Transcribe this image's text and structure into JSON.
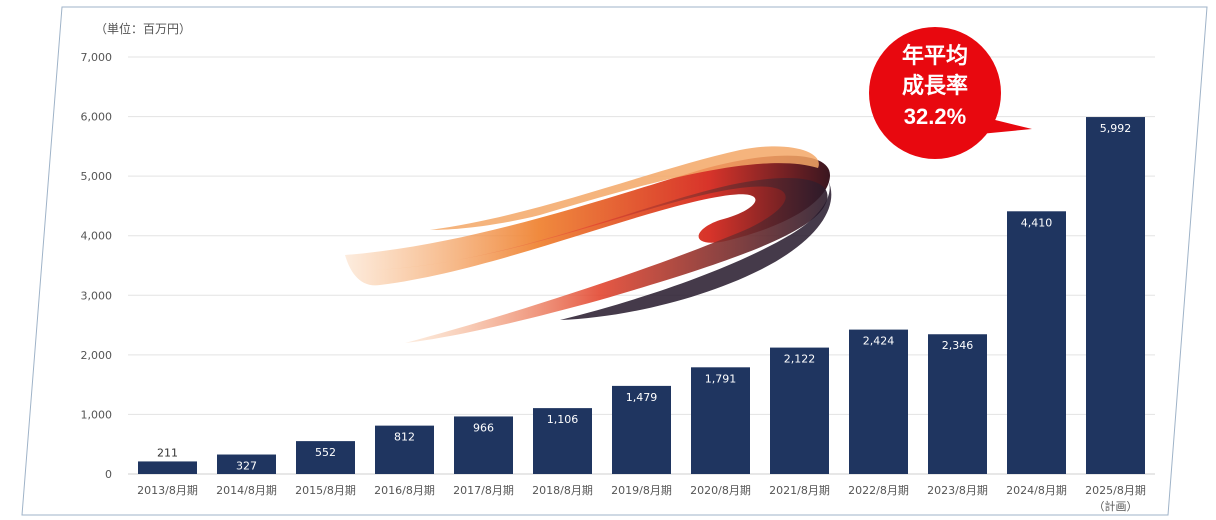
{
  "chart_data": {
    "type": "bar",
    "unit_label": "（単位：百万円）",
    "categories": [
      "2013/8月期",
      "2014/8月期",
      "2015/8月期",
      "2016/8月期",
      "2017/8月期",
      "2018/8月期",
      "2019/8月期",
      "2020/8月期",
      "2021/8月期",
      "2022/8月期",
      "2023/8月期",
      "2024/8月期",
      "2025/8月期"
    ],
    "category_notes": [
      "",
      "",
      "",
      "",
      "",
      "",
      "",
      "",
      "",
      "",
      "",
      "",
      "（計画）"
    ],
    "values": [
      211,
      327,
      552,
      812,
      966,
      1106,
      1479,
      1791,
      2122,
      2424,
      2346,
      4410,
      5992
    ],
    "value_labels": [
      "211",
      "327",
      "552",
      "812",
      "966",
      "1,106",
      "1,479",
      "1,791",
      "2,122",
      "2,424",
      "2,346",
      "4,410",
      "5,992"
    ],
    "ylim": [
      0,
      7000
    ],
    "yticks": [
      0,
      1000,
      2000,
      3000,
      4000,
      5000,
      6000,
      7000
    ],
    "ytick_labels": [
      "0",
      "1,000",
      "2,000",
      "3,000",
      "4,000",
      "5,000",
      "6,000",
      "7,000"
    ],
    "grid": true,
    "legend": "none",
    "colors": {
      "bar": "#1f3560",
      "callout": "#e8080f"
    }
  },
  "callout": {
    "lines": [
      "年平均",
      "成長率",
      "32.2%"
    ]
  }
}
